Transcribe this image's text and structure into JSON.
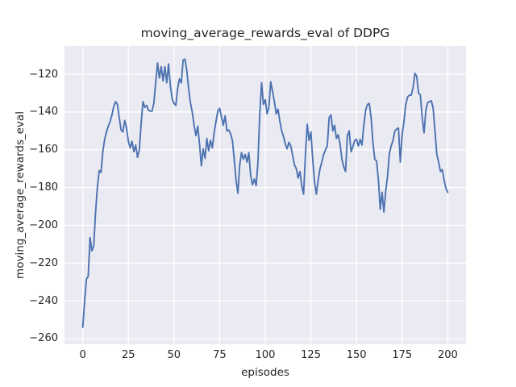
{
  "figure": {
    "title": "moving_average_rewards_eval of DDPG",
    "xlabel": "episodes",
    "ylabel": "moving_average_rewards_eval"
  },
  "chart_data": {
    "type": "line",
    "title": "moving_average_rewards_eval of DDPG",
    "xlabel": "episodes",
    "ylabel": "moving_average_rewards_eval",
    "x_description": "episode index equals array position, 0 through 200",
    "xlim": [
      -10,
      210
    ],
    "ylim": [
      -263,
      -105
    ],
    "x_ticks": [
      0,
      25,
      50,
      75,
      100,
      125,
      150,
      175,
      200
    ],
    "x_tick_labels": [
      "0",
      "25",
      "50",
      "75",
      "100",
      "125",
      "150",
      "175",
      "200"
    ],
    "y_ticks": [
      -120,
      -140,
      -160,
      -180,
      -200,
      -220,
      -240,
      -260
    ],
    "y_tick_labels": [
      "−120",
      "−140",
      "−160",
      "−180",
      "−200",
      "−220",
      "−240",
      "−260"
    ],
    "grid": true,
    "legend": "none",
    "style": "seaborn-darkgrid",
    "line_color": "#4c72b0",
    "plot_bg_color": "#eaeaf2",
    "grid_color": "#ffffff",
    "text_color": "#262626",
    "values": [
      -254,
      -240.5,
      -228.5,
      -227,
      -206.5,
      -213.5,
      -211,
      -193.5,
      -180,
      -171,
      -172,
      -161,
      -154.5,
      -150.5,
      -147.5,
      -145,
      -141.5,
      -137,
      -134.5,
      -136,
      -143,
      -149.5,
      -150.5,
      -144.5,
      -148.5,
      -155.5,
      -159,
      -155.5,
      -161,
      -157.5,
      -164,
      -160,
      -146,
      -134.5,
      -137.5,
      -136.5,
      -139,
      -139.5,
      -139.5,
      -135,
      -124,
      -114,
      -122,
      -116,
      -123.5,
      -116,
      -124.5,
      -114.5,
      -126,
      -133,
      -135.5,
      -136.5,
      -127.5,
      -122.5,
      -124.5,
      -112.5,
      -112,
      -118,
      -127.5,
      -135,
      -140,
      -147,
      -152.5,
      -147.5,
      -157,
      -168.5,
      -159.5,
      -164.5,
      -154,
      -160.5,
      -155,
      -159,
      -151,
      -145,
      -139.5,
      -138,
      -142.5,
      -147,
      -142,
      -150,
      -149.5,
      -151.5,
      -155,
      -165,
      -176,
      -183,
      -168,
      -161.5,
      -165,
      -162.5,
      -166.5,
      -161.5,
      -173.5,
      -178.5,
      -175.5,
      -179,
      -166.5,
      -141,
      -124.5,
      -136,
      -133.5,
      -141,
      -137.5,
      -124,
      -129,
      -134.5,
      -141,
      -138.5,
      -145,
      -150,
      -153,
      -157,
      -159.5,
      -156,
      -158,
      -163,
      -168,
      -170,
      -175,
      -171.5,
      -179,
      -183.5,
      -163,
      -146.5,
      -155,
      -150.5,
      -165,
      -177,
      -183.5,
      -176,
      -170,
      -166.5,
      -162.5,
      -160,
      -158,
      -143,
      -141.5,
      -150,
      -147,
      -154,
      -152,
      -157,
      -165,
      -169,
      -171.5,
      -152.5,
      -150,
      -161,
      -158.5,
      -155,
      -154.5,
      -158,
      -154.5,
      -157.5,
      -147,
      -139,
      -136,
      -135.5,
      -143,
      -156,
      -165,
      -166,
      -176,
      -191.5,
      -182.5,
      -193,
      -182,
      -174,
      -162,
      -158,
      -155,
      -150,
      -149,
      -148.5,
      -166.5,
      -152,
      -145,
      -136,
      -132,
      -131,
      -131,
      -127,
      -119.5,
      -121,
      -130,
      -131,
      -143,
      -151,
      -139,
      -135,
      -134.5,
      -134,
      -138,
      -150,
      -162.5,
      -166.5,
      -171.5,
      -170.5,
      -176,
      -180.5,
      -182.5
    ]
  }
}
